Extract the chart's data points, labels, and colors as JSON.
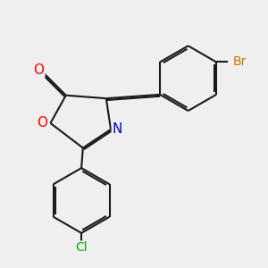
{
  "bg_color": "#efefef",
  "bond_color": "#1a1a1a",
  "bond_width": 1.5,
  "atom_colors": {
    "O_carbonyl": "#ff0000",
    "O_ring": "#ff0000",
    "N": "#0000cc",
    "Br": "#cc7700",
    "Cl": "#00aa00",
    "C": "#1a1a1a"
  },
  "font_size": 10,
  "fig_size": [
    3.0,
    3.0
  ],
  "dpi": 100
}
